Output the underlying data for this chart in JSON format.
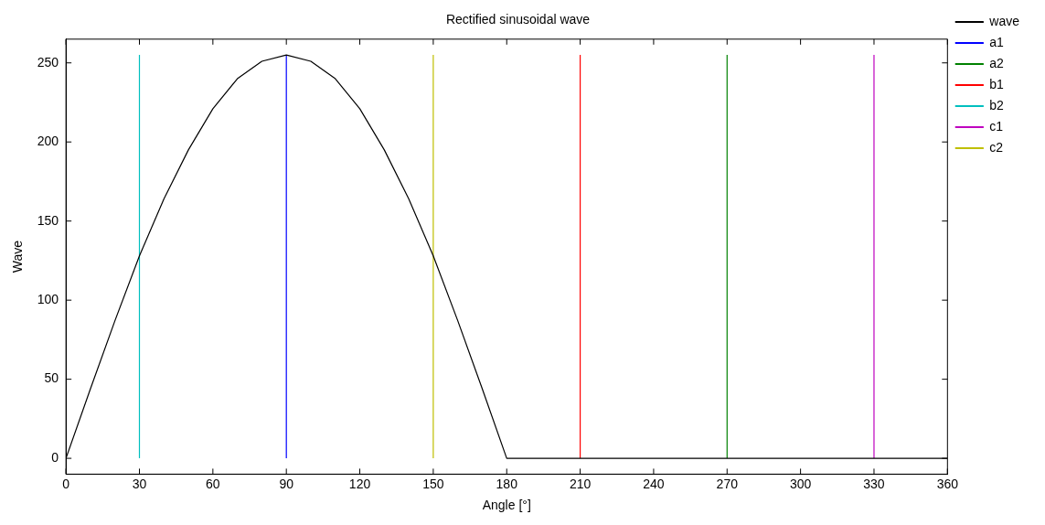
{
  "chart_data": {
    "type": "line",
    "title": "Rectified sinusoidal wave",
    "xlabel": "Angle [°]",
    "ylabel": "Wave",
    "xlim": [
      0,
      360
    ],
    "xticks": [
      0,
      30,
      60,
      90,
      120,
      150,
      180,
      210,
      240,
      270,
      300,
      330,
      360
    ],
    "ylim": [
      -10,
      265
    ],
    "yticks": [
      0,
      50,
      100,
      150,
      200,
      250
    ],
    "grid": false,
    "legend": "top right",
    "marker": "none",
    "line_style": "solid",
    "series": [
      {
        "name": "wave",
        "color": "#000000",
        "x": [
          0,
          10,
          20,
          30,
          40,
          50,
          60,
          70,
          80,
          90,
          100,
          110,
          120,
          130,
          140,
          150,
          160,
          170,
          180,
          190,
          200,
          220,
          240,
          260,
          280,
          300,
          320,
          340,
          360
        ],
        "values": [
          0,
          44,
          87,
          128,
          164,
          195,
          221,
          240,
          251,
          255,
          251,
          240,
          221,
          195,
          164,
          128,
          87,
          44,
          0,
          0,
          0,
          0,
          0,
          0,
          0,
          0,
          0,
          0,
          0
        ]
      },
      {
        "name": "a1",
        "color": "#0000ff",
        "x": [
          90,
          90
        ],
        "values": [
          0,
          255
        ]
      },
      {
        "name": "a2",
        "color": "#008000",
        "x": [
          270,
          270
        ],
        "values": [
          0,
          255
        ]
      },
      {
        "name": "b1",
        "color": "#ff0000",
        "x": [
          210,
          210
        ],
        "values": [
          0,
          255
        ]
      },
      {
        "name": "b2",
        "color": "#00bfbf",
        "x": [
          30,
          30
        ],
        "values": [
          0,
          255
        ]
      },
      {
        "name": "c1",
        "color": "#bf00bf",
        "x": [
          330,
          330
        ],
        "values": [
          0,
          255
        ]
      },
      {
        "name": "c2",
        "color": "#bfbf00",
        "x": [
          150,
          150
        ],
        "values": [
          0,
          255
        ]
      }
    ]
  }
}
